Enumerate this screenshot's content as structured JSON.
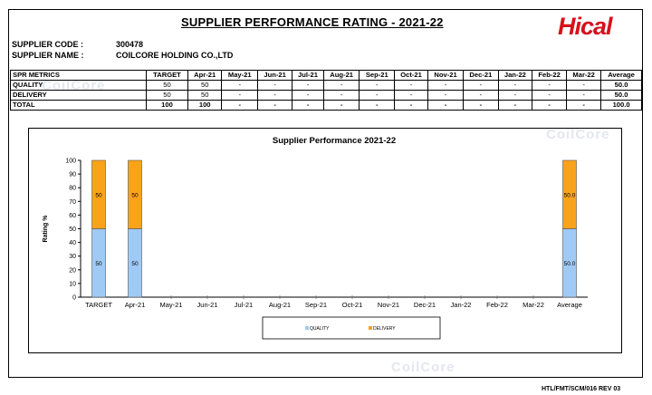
{
  "header": {
    "title": "SUPPLIER PERFORMANCE RATING - 2021-22",
    "logo_text": "Hical",
    "supplier_code_label": "SUPPLIER CODE :",
    "supplier_code": "300478",
    "supplier_name_label": "SUPPLIER NAME :",
    "supplier_name": "COILCORE HOLDING CO.,LTD"
  },
  "watermark": "CoilCore",
  "table": {
    "columns": [
      "SPR METRICS",
      "TARGET",
      "Apr-21",
      "May-21",
      "Jun-21",
      "Jul-21",
      "Aug-21",
      "Sep-21",
      "Oct-21",
      "Nov-21",
      "Dec-21",
      "Jan-22",
      "Feb-22",
      "Mar-22",
      "Average"
    ],
    "rows": [
      {
        "name": "QUALITY",
        "cells": [
          "50",
          "50",
          "-",
          "-",
          "-",
          "-",
          "-",
          "-",
          "-",
          "-",
          "-",
          "-",
          "-",
          "50.0"
        ]
      },
      {
        "name": "DELIVERY",
        "cells": [
          "50",
          "50",
          "-",
          "-",
          "-",
          "-",
          "-",
          "-",
          "-",
          "-",
          "-",
          "-",
          "-",
          "50.0"
        ]
      },
      {
        "name": "TOTAL",
        "cells": [
          "100",
          "100",
          "-",
          "-",
          "-",
          "-",
          "-",
          "-",
          "-",
          "-",
          "-",
          "-",
          "-",
          "100.0"
        ]
      }
    ]
  },
  "chart_data": {
    "type": "bar",
    "stacked": true,
    "title": "Supplier Performance 2021-22",
    "ylabel": "Rating %",
    "xlabel": "",
    "ylim": [
      0,
      100
    ],
    "yticks": [
      0,
      10,
      20,
      30,
      40,
      50,
      60,
      70,
      80,
      90,
      100
    ],
    "categories": [
      "TARGET",
      "Apr-21",
      "May-21",
      "Jun-21",
      "Jul-21",
      "Aug-21",
      "Sep-21",
      "Oct-21",
      "Nov-21",
      "Dec-21",
      "Jan-22",
      "Feb-22",
      "Mar-22",
      "Average"
    ],
    "series": [
      {
        "name": "QUALITY",
        "color": "#9fcaf5",
        "values": [
          50,
          50,
          0,
          0,
          0,
          0,
          0,
          0,
          0,
          0,
          0,
          0,
          0,
          50
        ],
        "labels": [
          "50",
          "50",
          "",
          "",
          "",
          "",
          "",
          "",
          "",
          "",
          "",
          "",
          "",
          "50.0"
        ]
      },
      {
        "name": "DELIVERY",
        "color": "#f9a31b",
        "values": [
          50,
          50,
          0,
          0,
          0,
          0,
          0,
          0,
          0,
          0,
          0,
          0,
          0,
          50
        ],
        "labels": [
          "50",
          "50",
          "",
          "",
          "",
          "",
          "",
          "",
          "",
          "",
          "",
          "",
          "",
          "50.0"
        ]
      }
    ],
    "legend_position": "bottom",
    "grid": false
  },
  "footer": {
    "doc_ref": "HTL/FMT/SCM/016 REV 03"
  }
}
